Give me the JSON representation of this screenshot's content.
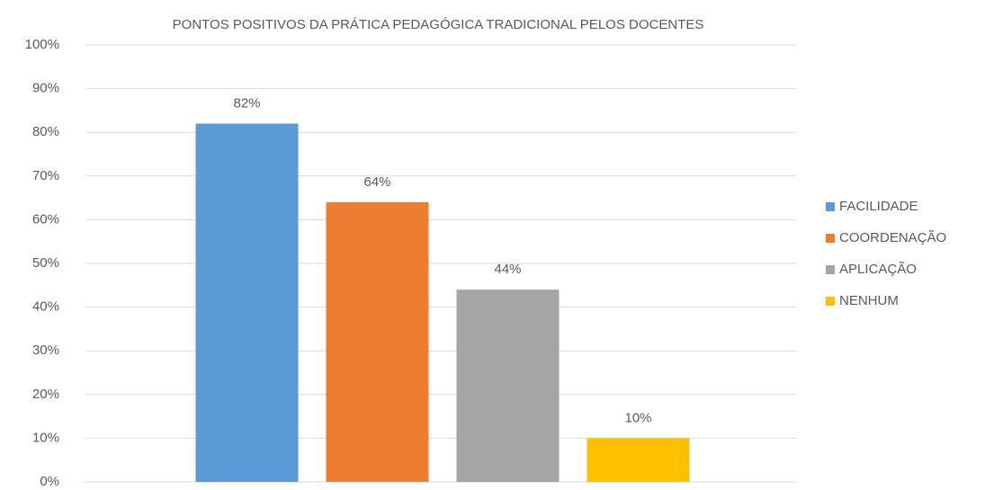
{
  "chart_data": {
    "type": "bar",
    "title": "PONTOS POSITIVOS DA PRÁTICA PEDAGÓGICA TRADICIONAL PELOS DOCENTES",
    "categories": [
      null
    ],
    "series": [
      {
        "name": "FACILIDADE",
        "color": "#5b9bd5",
        "values": [
          82
        ],
        "value_labels": [
          "82%"
        ]
      },
      {
        "name": "COORDENAÇÃO",
        "color": "#ed7d31",
        "values": [
          64
        ],
        "value_labels": [
          "64%"
        ]
      },
      {
        "name": "APLICAÇÃO",
        "color": "#a5a5a5",
        "values": [
          44
        ],
        "value_labels": [
          "44%"
        ]
      },
      {
        "name": "NENHUM",
        "color": "#ffc000",
        "values": [
          10
        ],
        "value_labels": [
          "10%"
        ]
      }
    ],
    "ylim": [
      0,
      100
    ],
    "yticks": [
      {
        "value": 0,
        "label": "0%"
      },
      {
        "value": 10,
        "label": "10%"
      },
      {
        "value": 20,
        "label": "20%"
      },
      {
        "value": 30,
        "label": "30%"
      },
      {
        "value": 40,
        "label": "40%"
      },
      {
        "value": 50,
        "label": "50%"
      },
      {
        "value": 60,
        "label": "60%"
      },
      {
        "value": 70,
        "label": "70%"
      },
      {
        "value": 80,
        "label": "80%"
      },
      {
        "value": 90,
        "label": "90%"
      },
      {
        "value": 100,
        "label": "100%"
      }
    ],
    "grid": true,
    "legend": "right"
  }
}
